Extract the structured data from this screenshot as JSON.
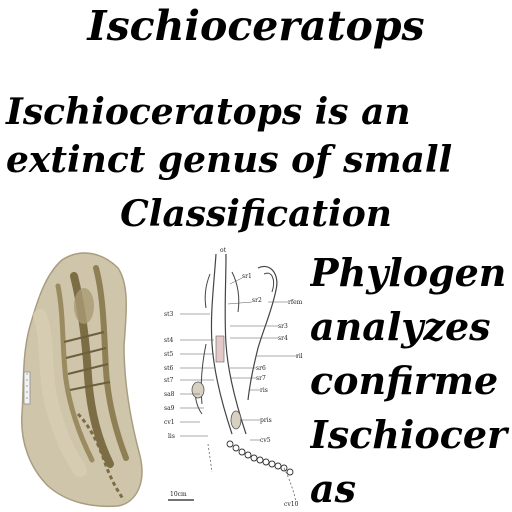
{
  "title": "Ischioceratops",
  "summary_lines": [
    "Ischioceratops is an",
    "extinct genus of small"
  ],
  "section_heading": "Classification",
  "section_text_lines": [
    "Phylogen",
    "analyzes",
    "confirme",
    "Ischiocer",
    "as"
  ],
  "diagram_labels": {
    "top": "ot",
    "sr1": "sr1",
    "sr2": "sr2",
    "st3": "st3",
    "rfem": "rfem",
    "sr3": "sr3",
    "sr4": "sr4",
    "st4": "st4",
    "st5": "st5",
    "ril": "ril",
    "st6": "st6",
    "sr6": "sr6",
    "st7": "st7",
    "sr7": "sr7",
    "sa8": "sa8",
    "ris": "ris",
    "sa9": "sa9",
    "cv1": "cv1",
    "lis": "lis",
    "pris": "pris",
    "cv5": "cv5",
    "cv10": "cv10",
    "scale": "10cm"
  },
  "colors": {
    "text": "#000000",
    "background": "#ffffff",
    "rock": "#c9bfa6",
    "bone": "#8a7a52"
  }
}
